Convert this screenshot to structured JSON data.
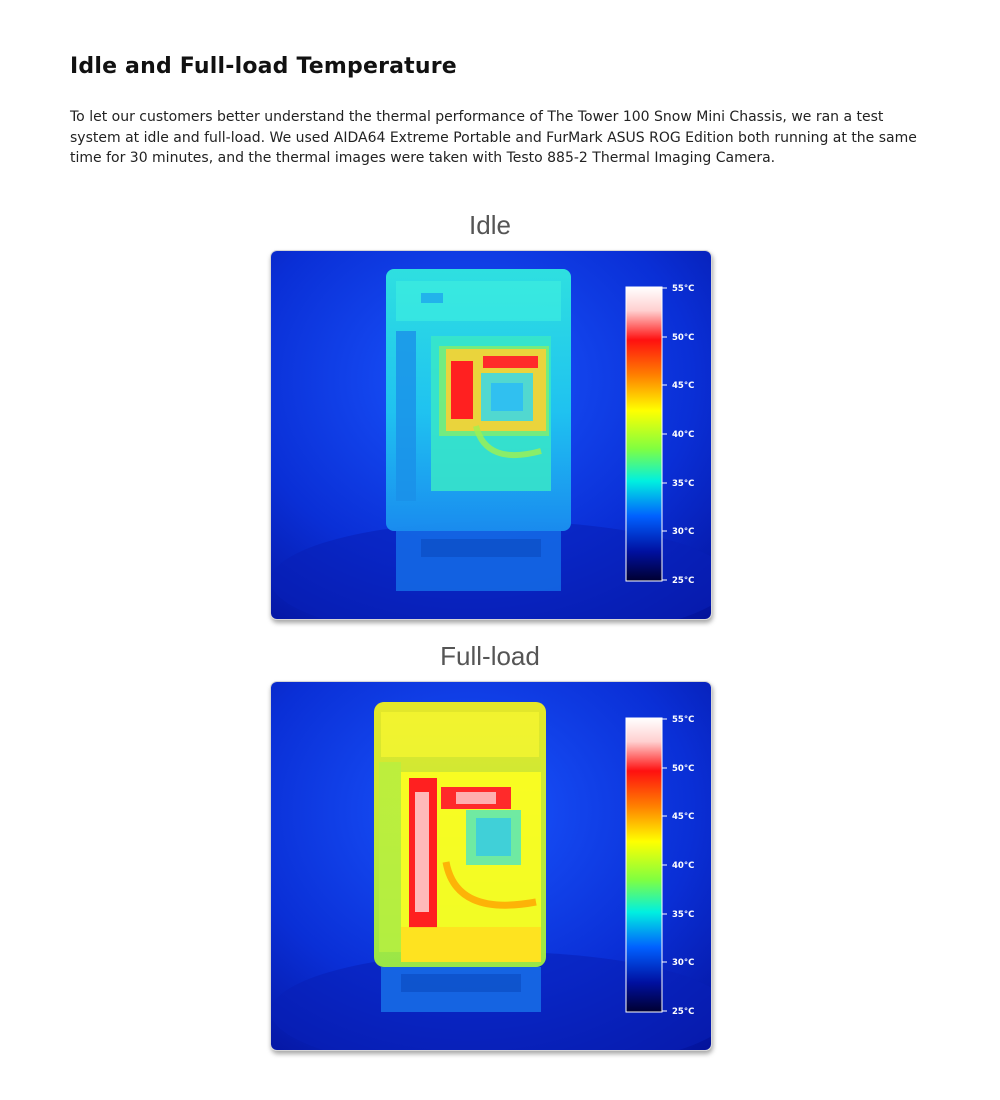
{
  "article": {
    "title": "Idle and Full-load Temperature",
    "intro": "To let our customers better understand the thermal performance of The Tower 100 Snow Mini Chassis, we ran a test system at idle and full-load. We used AIDA64 Extreme Portable and FurMark ASUS ROG Edition both running at the same time for 30 minutes, and the thermal images were taken with Testo 885-2 Thermal Imaging Camera."
  },
  "images": {
    "idle": {
      "caption": "Idle",
      "scale": [
        "55°C",
        "50°C",
        "45°C",
        "40°C",
        "35°C",
        "30°C",
        "25°C"
      ]
    },
    "full_load": {
      "caption": "Full-load",
      "scale": [
        "55°C",
        "50°C",
        "45°C",
        "40°C",
        "35°C",
        "30°C",
        "25°C"
      ]
    }
  },
  "colors": {
    "background_blue": "#0a2fd6",
    "idle_chassis": "#2ad8f0",
    "load_chassis": "#d9f51f",
    "hot_red": "#ff1a1a"
  }
}
